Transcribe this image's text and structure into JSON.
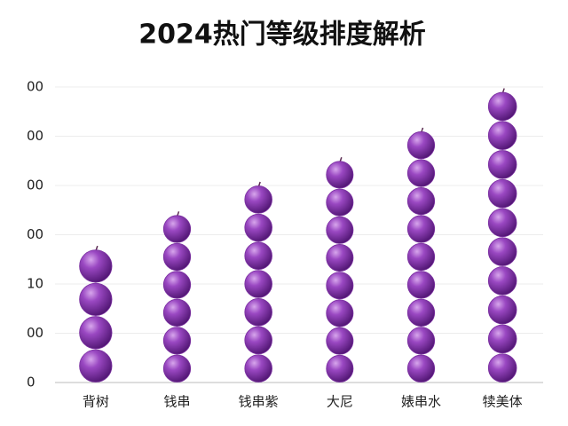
{
  "chart_data": {
    "type": "bead-bar",
    "title": "2024热门等级排度解析",
    "categories": [
      "背树",
      "钱串",
      "钱串紫",
      "大尼",
      "婊串水",
      "犊美体"
    ],
    "values": [
      2.7,
      3.4,
      4.0,
      4.5,
      5.1,
      5.9
    ],
    "color": "#7a2fa0",
    "ylim": [
      0,
      6
    ],
    "yticks": [
      0,
      {
        "value": 1,
        "label": "00"
      },
      {
        "value": 2,
        "label": "10"
      },
      {
        "value": 3,
        "label": "00"
      },
      {
        "value": 4,
        "label": "00"
      },
      {
        "value": 5,
        "label": "00"
      },
      {
        "value": 6,
        "label": "00"
      }
    ],
    "grid": true
  }
}
